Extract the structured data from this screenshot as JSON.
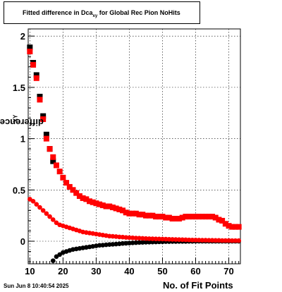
{
  "title": {
    "prefix": "Fitted difference in Dca",
    "sub": "xy",
    "suffix": " for Global Rec Pion NoHits"
  },
  "timestamp": "Sun Jun  8 10:40:54 2025",
  "chart_data": {
    "type": "scatter",
    "xlabel": "No. of Fit Points",
    "ylabel": {
      "text": "difference in Dca",
      "sub": "XY"
    },
    "xlim": [
      9.5,
      73.5
    ],
    "ylim": [
      -0.22,
      2.07
    ],
    "xticks": [
      10,
      20,
      30,
      40,
      50,
      60,
      70
    ],
    "yticks": [
      0,
      0.5,
      1,
      1.5,
      2
    ],
    "ytick_labels": [
      "0",
      "0.5",
      "1",
      "1.5",
      "2"
    ],
    "grid": true,
    "series": [
      {
        "color": "#000000",
        "marker": "square",
        "x": [
          10,
          11,
          12,
          13,
          14,
          15,
          16,
          17
        ],
        "y": [
          1.89,
          1.74,
          1.62,
          1.41,
          1.22,
          1.04,
          0.9,
          0.78
        ]
      },
      {
        "color": "#ff0000",
        "marker": "square",
        "x": [
          10,
          11,
          12,
          13,
          14,
          15,
          16,
          17,
          18,
          19,
          20,
          21,
          22,
          23,
          24,
          25,
          26,
          27,
          28,
          29,
          30,
          31,
          32,
          33,
          34,
          35,
          36,
          37,
          38,
          39,
          40,
          41,
          42,
          43,
          44,
          45,
          46,
          47,
          48,
          49,
          50,
          51,
          52,
          53,
          54,
          55,
          56,
          57,
          58,
          59,
          60,
          61,
          62,
          63,
          64,
          65,
          66,
          67,
          68,
          69,
          70,
          71,
          72,
          73
        ],
        "y": [
          1.85,
          1.72,
          1.59,
          1.38,
          1.19,
          1.0,
          0.9,
          0.82,
          0.74,
          0.68,
          0.62,
          0.57,
          0.53,
          0.5,
          0.47,
          0.44,
          0.42,
          0.41,
          0.39,
          0.38,
          0.37,
          0.36,
          0.35,
          0.34,
          0.34,
          0.33,
          0.32,
          0.31,
          0.3,
          0.28,
          0.27,
          0.27,
          0.27,
          0.26,
          0.26,
          0.25,
          0.25,
          0.25,
          0.24,
          0.24,
          0.24,
          0.23,
          0.23,
          0.22,
          0.22,
          0.22,
          0.23,
          0.24,
          0.24,
          0.24,
          0.24,
          0.24,
          0.24,
          0.24,
          0.24,
          0.24,
          0.23,
          0.21,
          0.2,
          0.17,
          0.15,
          0.14,
          0.14,
          0.14
        ]
      },
      {
        "color": "#000000",
        "marker": "circle",
        "x": [
          17,
          18,
          19,
          20,
          21,
          22,
          23,
          24,
          25,
          26,
          27,
          28,
          29,
          30,
          31,
          32,
          33,
          34,
          35,
          36,
          37,
          38,
          39,
          40,
          41,
          42,
          43,
          44,
          45,
          46,
          47,
          48,
          49,
          50,
          51,
          52,
          53,
          54,
          55,
          56,
          57,
          58,
          59,
          60,
          61,
          62,
          63,
          64,
          65,
          66,
          67,
          68,
          69,
          70,
          71,
          72,
          73
        ],
        "y": [
          -0.19,
          -0.15,
          -0.13,
          -0.11,
          -0.1,
          -0.09,
          -0.08,
          -0.075,
          -0.07,
          -0.065,
          -0.06,
          -0.055,
          -0.05,
          -0.045,
          -0.04,
          -0.038,
          -0.035,
          -0.032,
          -0.03,
          -0.028,
          -0.025,
          -0.022,
          -0.02,
          -0.018,
          -0.016,
          -0.014,
          -0.012,
          -0.011,
          -0.01,
          -0.009,
          -0.008,
          -0.007,
          -0.006,
          -0.005,
          -0.004,
          -0.004,
          -0.003,
          -0.003,
          -0.002,
          -0.002,
          -0.002,
          -0.001,
          -0.001,
          0,
          0,
          0,
          0,
          0,
          0,
          0,
          0,
          0,
          0,
          0,
          0,
          0,
          0
        ]
      },
      {
        "color": "#ff0000",
        "marker": "circle",
        "x": [
          10,
          11,
          12,
          13,
          14,
          15,
          16,
          17,
          18,
          19,
          20,
          21,
          22,
          23,
          24,
          25,
          26,
          27,
          28,
          29,
          30,
          31,
          32,
          33,
          34,
          35,
          36,
          37,
          38,
          39,
          40,
          41,
          42,
          43,
          44,
          45,
          46,
          47,
          48,
          49,
          50,
          51,
          52,
          53,
          54,
          55,
          56,
          57,
          58,
          59,
          60,
          61,
          62,
          63,
          64,
          65,
          66,
          67,
          68,
          69,
          70,
          71,
          72,
          73
        ],
        "y": [
          0.41,
          0.39,
          0.36,
          0.33,
          0.3,
          0.27,
          0.24,
          0.21,
          0.18,
          0.16,
          0.15,
          0.14,
          0.13,
          0.12,
          0.11,
          0.1,
          0.09,
          0.085,
          0.08,
          0.075,
          0.07,
          0.065,
          0.06,
          0.055,
          0.05,
          0.048,
          0.045,
          0.042,
          0.04,
          0.037,
          0.035,
          0.033,
          0.031,
          0.03,
          0.028,
          0.026,
          0.025,
          0.024,
          0.023,
          0.022,
          0.021,
          0.02,
          0.019,
          0.018,
          0.017,
          0.016,
          0.015,
          0.014,
          0.013,
          0.012,
          0.012,
          0.011,
          0.01,
          0.01,
          0.009,
          0.009,
          0.008,
          0.008,
          0.007,
          0.007,
          0.007,
          0.006,
          0.006,
          0.006
        ]
      }
    ]
  }
}
